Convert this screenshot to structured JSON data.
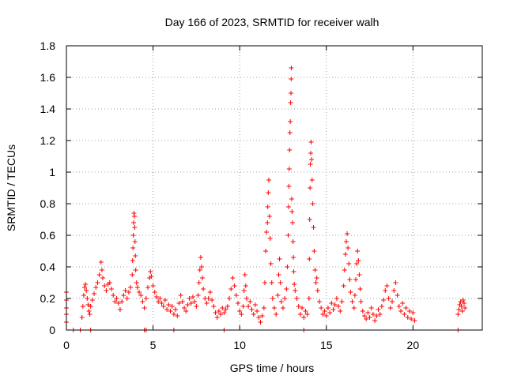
{
  "chart_data": {
    "type": "scatter",
    "title": "Day 166 of 2023, SRMTID for receiver walh",
    "xlabel": "GPS time / hours",
    "ylabel": "SRMTID / TECUs",
    "xlim": [
      0,
      24
    ],
    "ylim": [
      0,
      1.8
    ],
    "xticks": [
      "0",
      "5",
      "10",
      "15",
      "20"
    ],
    "yticks": [
      "0",
      "0.2",
      "0.4",
      "0.6",
      "0.8",
      "1",
      "1.2",
      "1.4",
      "1.6",
      "1.8"
    ],
    "grid": true,
    "marker": "+",
    "color": "#ff0000",
    "series": [
      {
        "name": "SRMTID",
        "points": [
          [
            0.0,
            0.24
          ],
          [
            0.0,
            0.19
          ],
          [
            0.0,
            0.14
          ],
          [
            0.0,
            0.1
          ],
          [
            0.0,
            0.05
          ],
          [
            0.4,
            0.0
          ],
          [
            0.8,
            0.0
          ],
          [
            1.4,
            0.0
          ],
          [
            4.5,
            0.0
          ],
          [
            4.6,
            0.0
          ],
          [
            6.2,
            0.0
          ],
          [
            9.1,
            0.0
          ],
          [
            13.7,
            0.0
          ],
          [
            22.6,
            0.0
          ],
          [
            0.9,
            0.08
          ],
          [
            0.95,
            0.15
          ],
          [
            1.0,
            0.22
          ],
          [
            1.05,
            0.27
          ],
          [
            1.1,
            0.29
          ],
          [
            1.15,
            0.25
          ],
          [
            1.2,
            0.2
          ],
          [
            1.25,
            0.16
          ],
          [
            1.3,
            0.12
          ],
          [
            1.35,
            0.1
          ],
          [
            1.4,
            0.15
          ],
          [
            1.5,
            0.19
          ],
          [
            1.6,
            0.23
          ],
          [
            1.7,
            0.27
          ],
          [
            1.8,
            0.3
          ],
          [
            1.9,
            0.35
          ],
          [
            2.0,
            0.43
          ],
          [
            2.05,
            0.38
          ],
          [
            2.1,
            0.33
          ],
          [
            2.2,
            0.28
          ],
          [
            2.3,
            0.25
          ],
          [
            2.4,
            0.29
          ],
          [
            2.5,
            0.3
          ],
          [
            2.6,
            0.26
          ],
          [
            2.7,
            0.22
          ],
          [
            2.8,
            0.18
          ],
          [
            2.9,
            0.2
          ],
          [
            3.0,
            0.17
          ],
          [
            3.1,
            0.13
          ],
          [
            3.2,
            0.18
          ],
          [
            3.3,
            0.22
          ],
          [
            3.4,
            0.25
          ],
          [
            3.5,
            0.2
          ],
          [
            3.6,
            0.24
          ],
          [
            3.7,
            0.27
          ],
          [
            3.8,
            0.35
          ],
          [
            3.82,
            0.44
          ],
          [
            3.84,
            0.52
          ],
          [
            3.86,
            0.6
          ],
          [
            3.88,
            0.68
          ],
          [
            3.9,
            0.74
          ],
          [
            3.92,
            0.72
          ],
          [
            3.94,
            0.65
          ],
          [
            3.96,
            0.56
          ],
          [
            3.98,
            0.47
          ],
          [
            4.0,
            0.38
          ],
          [
            4.05,
            0.3
          ],
          [
            4.1,
            0.27
          ],
          [
            4.2,
            0.24
          ],
          [
            4.3,
            0.22
          ],
          [
            4.4,
            0.18
          ],
          [
            4.5,
            0.14
          ],
          [
            4.6,
            0.2
          ],
          [
            4.7,
            0.27
          ],
          [
            4.8,
            0.33
          ],
          [
            4.85,
            0.37
          ],
          [
            4.9,
            0.34
          ],
          [
            5.0,
            0.28
          ],
          [
            5.1,
            0.24
          ],
          [
            5.2,
            0.21
          ],
          [
            5.3,
            0.18
          ],
          [
            5.4,
            0.2
          ],
          [
            5.5,
            0.17
          ],
          [
            5.6,
            0.15
          ],
          [
            5.7,
            0.19
          ],
          [
            5.8,
            0.13
          ],
          [
            5.9,
            0.16
          ],
          [
            6.0,
            0.12
          ],
          [
            6.1,
            0.15
          ],
          [
            6.2,
            0.1
          ],
          [
            6.3,
            0.13
          ],
          [
            6.4,
            0.09
          ],
          [
            6.5,
            0.17
          ],
          [
            6.6,
            0.22
          ],
          [
            6.7,
            0.18
          ],
          [
            6.8,
            0.14
          ],
          [
            6.9,
            0.12
          ],
          [
            7.0,
            0.16
          ],
          [
            7.1,
            0.2
          ],
          [
            7.2,
            0.17
          ],
          [
            7.3,
            0.21
          ],
          [
            7.4,
            0.18
          ],
          [
            7.5,
            0.15
          ],
          [
            7.6,
            0.22
          ],
          [
            7.65,
            0.3
          ],
          [
            7.7,
            0.38
          ],
          [
            7.75,
            0.46
          ],
          [
            7.8,
            0.4
          ],
          [
            7.85,
            0.33
          ],
          [
            7.9,
            0.26
          ],
          [
            8.0,
            0.2
          ],
          [
            8.1,
            0.17
          ],
          [
            8.2,
            0.2
          ],
          [
            8.3,
            0.24
          ],
          [
            8.4,
            0.19
          ],
          [
            8.5,
            0.15
          ],
          [
            8.6,
            0.11
          ],
          [
            8.7,
            0.08
          ],
          [
            8.8,
            0.12
          ],
          [
            8.9,
            0.1
          ],
          [
            9.0,
            0.14
          ],
          [
            9.1,
            0.11
          ],
          [
            9.2,
            0.13
          ],
          [
            9.3,
            0.15
          ],
          [
            9.4,
            0.2
          ],
          [
            9.5,
            0.26
          ],
          [
            9.6,
            0.33
          ],
          [
            9.7,
            0.28
          ],
          [
            9.8,
            0.22
          ],
          [
            9.9,
            0.17
          ],
          [
            10.0,
            0.12
          ],
          [
            10.1,
            0.1
          ],
          [
            10.2,
            0.15
          ],
          [
            10.25,
            0.25
          ],
          [
            10.3,
            0.35
          ],
          [
            10.35,
            0.28
          ],
          [
            10.4,
            0.2
          ],
          [
            10.5,
            0.15
          ],
          [
            10.6,
            0.18
          ],
          [
            10.7,
            0.13
          ],
          [
            10.8,
            0.1
          ],
          [
            10.9,
            0.16
          ],
          [
            11.0,
            0.12
          ],
          [
            11.1,
            0.08
          ],
          [
            11.2,
            0.05
          ],
          [
            11.3,
            0.09
          ],
          [
            11.4,
            0.14
          ],
          [
            11.45,
            0.3
          ],
          [
            11.5,
            0.5
          ],
          [
            11.55,
            0.62
          ],
          [
            11.6,
            0.68
          ],
          [
            11.62,
            0.78
          ],
          [
            11.65,
            0.87
          ],
          [
            11.68,
            0.95
          ],
          [
            11.72,
            0.72
          ],
          [
            11.76,
            0.58
          ],
          [
            11.8,
            0.42
          ],
          [
            11.85,
            0.3
          ],
          [
            11.9,
            0.2
          ],
          [
            12.0,
            0.14
          ],
          [
            12.1,
            0.1
          ],
          [
            12.2,
            0.22
          ],
          [
            12.25,
            0.35
          ],
          [
            12.3,
            0.45
          ],
          [
            12.35,
            0.3
          ],
          [
            12.4,
            0.18
          ],
          [
            12.5,
            0.14
          ],
          [
            12.6,
            0.2
          ],
          [
            12.7,
            0.26
          ],
          [
            12.75,
            0.4
          ],
          [
            12.8,
            0.6
          ],
          [
            12.82,
            0.78
          ],
          [
            12.84,
            0.91
          ],
          [
            12.86,
            1.02
          ],
          [
            12.88,
            1.14
          ],
          [
            12.9,
            1.25
          ],
          [
            12.92,
            1.32
          ],
          [
            12.94,
            1.44
          ],
          [
            12.96,
            1.5
          ],
          [
            12.97,
            1.59
          ],
          [
            12.98,
            1.66
          ],
          [
            13.0,
            0.83
          ],
          [
            13.02,
            0.75
          ],
          [
            13.05,
            0.68
          ],
          [
            13.08,
            0.56
          ],
          [
            13.1,
            0.46
          ],
          [
            13.12,
            0.37
          ],
          [
            13.15,
            0.29
          ],
          [
            13.2,
            0.25
          ],
          [
            13.3,
            0.2
          ],
          [
            13.4,
            0.15
          ],
          [
            13.5,
            0.1
          ],
          [
            13.6,
            0.14
          ],
          [
            13.7,
            0.08
          ],
          [
            13.8,
            0.12
          ],
          [
            13.9,
            0.1
          ],
          [
            14.0,
            0.2
          ],
          [
            14.02,
            0.45
          ],
          [
            14.04,
            0.7
          ],
          [
            14.06,
            0.9
          ],
          [
            14.08,
            1.05
          ],
          [
            14.1,
            1.12
          ],
          [
            14.12,
            1.19
          ],
          [
            14.15,
            1.08
          ],
          [
            14.18,
            0.95
          ],
          [
            14.22,
            0.8
          ],
          [
            14.26,
            0.65
          ],
          [
            14.3,
            0.5
          ],
          [
            14.35,
            0.38
          ],
          [
            14.4,
            0.3
          ],
          [
            14.45,
            0.33
          ],
          [
            14.5,
            0.25
          ],
          [
            14.6,
            0.18
          ],
          [
            14.7,
            0.14
          ],
          [
            14.8,
            0.1
          ],
          [
            14.9,
            0.12
          ],
          [
            15.0,
            0.09
          ],
          [
            15.1,
            0.14
          ],
          [
            15.2,
            0.11
          ],
          [
            15.3,
            0.17
          ],
          [
            15.4,
            0.13
          ],
          [
            15.5,
            0.16
          ],
          [
            15.6,
            0.2
          ],
          [
            15.7,
            0.15
          ],
          [
            15.8,
            0.12
          ],
          [
            15.9,
            0.18
          ],
          [
            16.0,
            0.28
          ],
          [
            16.05,
            0.38
          ],
          [
            16.1,
            0.48
          ],
          [
            16.15,
            0.56
          ],
          [
            16.2,
            0.61
          ],
          [
            16.25,
            0.52
          ],
          [
            16.3,
            0.42
          ],
          [
            16.35,
            0.32
          ],
          [
            16.4,
            0.24
          ],
          [
            16.5,
            0.18
          ],
          [
            16.6,
            0.14
          ],
          [
            16.65,
            0.22
          ],
          [
            16.7,
            0.32
          ],
          [
            16.75,
            0.42
          ],
          [
            16.8,
            0.5
          ],
          [
            16.85,
            0.44
          ],
          [
            16.9,
            0.35
          ],
          [
            16.95,
            0.26
          ],
          [
            17.0,
            0.18
          ],
          [
            17.1,
            0.12
          ],
          [
            17.2,
            0.09
          ],
          [
            17.3,
            0.07
          ],
          [
            17.4,
            0.11
          ],
          [
            17.5,
            0.08
          ],
          [
            17.6,
            0.14
          ],
          [
            17.7,
            0.1
          ],
          [
            17.8,
            0.06
          ],
          [
            17.9,
            0.09
          ],
          [
            18.0,
            0.13
          ],
          [
            18.1,
            0.1
          ],
          [
            18.2,
            0.15
          ],
          [
            18.3,
            0.19
          ],
          [
            18.4,
            0.25
          ],
          [
            18.5,
            0.28
          ],
          [
            18.6,
            0.2
          ],
          [
            18.7,
            0.14
          ],
          [
            18.8,
            0.18
          ],
          [
            18.9,
            0.25
          ],
          [
            19.0,
            0.3
          ],
          [
            19.1,
            0.22
          ],
          [
            19.2,
            0.15
          ],
          [
            19.3,
            0.12
          ],
          [
            19.4,
            0.17
          ],
          [
            19.5,
            0.1
          ],
          [
            19.6,
            0.14
          ],
          [
            19.7,
            0.08
          ],
          [
            19.8,
            0.12
          ],
          [
            19.9,
            0.07
          ],
          [
            20.0,
            0.11
          ],
          [
            20.1,
            0.06
          ],
          [
            22.6,
            0.1
          ],
          [
            22.65,
            0.13
          ],
          [
            22.7,
            0.16
          ],
          [
            22.75,
            0.18
          ],
          [
            22.8,
            0.15
          ],
          [
            22.85,
            0.12
          ],
          [
            22.9,
            0.19
          ],
          [
            22.95,
            0.17
          ],
          [
            23.0,
            0.14
          ]
        ]
      }
    ]
  }
}
